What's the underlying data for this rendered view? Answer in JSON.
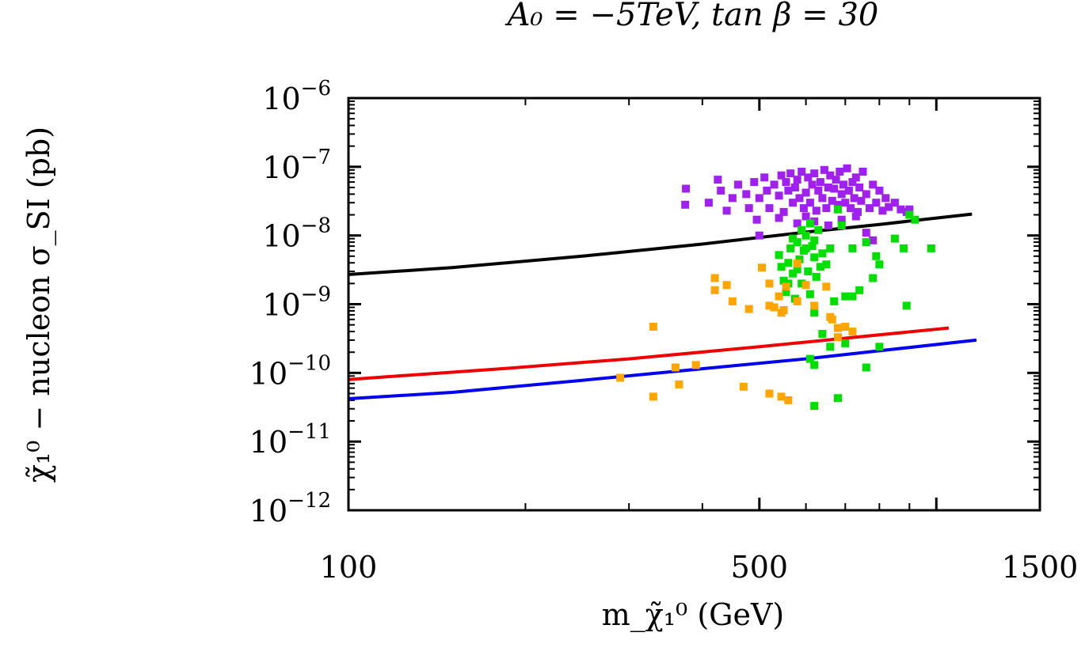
{
  "chart_data": {
    "type": "scatter",
    "title": "A₀ = −5TeV, tan β = 30",
    "xlabel": "m_χ̃₁⁰ (GeV)",
    "ylabel": "χ̃₁⁰ − nucleon σ_SI (pb)",
    "xscale": "log",
    "yscale": "log",
    "xlim": [
      100,
      1500
    ],
    "ylim": [
      1e-12,
      1e-06
    ],
    "x_tick_labels": [
      "100",
      "500",
      "1500"
    ],
    "x_tick_values": [
      100,
      500,
      1500
    ],
    "y_tick_values": [
      1e-12,
      1e-11,
      1e-10,
      1e-09,
      1e-08,
      1e-07,
      1e-06
    ],
    "y_tick_labels": [
      {
        "base": "10",
        "exp": "−12"
      },
      {
        "base": "10",
        "exp": "−11"
      },
      {
        "base": "10",
        "exp": "−10"
      },
      {
        "base": "10",
        "exp": "−9"
      },
      {
        "base": "10",
        "exp": "−8"
      },
      {
        "base": "10",
        "exp": "−7"
      },
      {
        "base": "10",
        "exp": "−6"
      }
    ],
    "grid": false,
    "lines": [
      {
        "color": "#000000",
        "x": [
          100,
          150,
          250,
          400,
          600,
          800,
          1150
        ],
        "y": [
          2.7e-09,
          3.4e-09,
          5e-09,
          7.5e-09,
          1.12e-08,
          1.45e-08,
          2.05e-08
        ]
      },
      {
        "color": "#ee0000",
        "x": [
          100,
          130,
          180,
          300,
          500,
          700,
          1050
        ],
        "y": [
          8e-11,
          9.4e-11,
          1.14e-10,
          1.6e-10,
          2.4e-10,
          3.2e-10,
          4.5e-10
        ]
      },
      {
        "color": "#0000ee",
        "x": [
          100,
          150,
          250,
          400,
          600,
          800,
          1170
        ],
        "y": [
          4.2e-11,
          5.2e-11,
          7.8e-11,
          1.15e-10,
          1.6e-10,
          2.1e-10,
          3e-10
        ]
      }
    ],
    "series": [
      {
        "color": "#a020f0",
        "marker": "square",
        "points": [
          [
            375,
            4.8e-08
          ],
          [
            374,
            2.8e-08
          ],
          [
            410,
            3e-08
          ],
          [
            425,
            6.5e-08
          ],
          [
            430,
            4.5e-08
          ],
          [
            440,
            2.3e-08
          ],
          [
            450,
            3.5e-08
          ],
          [
            460,
            5.5e-08
          ],
          [
            475,
            4e-08
          ],
          [
            480,
            2.5e-08
          ],
          [
            490,
            6e-08
          ],
          [
            495,
            1.7e-08
          ],
          [
            500,
            3.5e-08
          ],
          [
            510,
            7e-08
          ],
          [
            515,
            4.5e-08
          ],
          [
            520,
            2.5e-08
          ],
          [
            530,
            5.5e-08
          ],
          [
            540,
            3.8e-08
          ],
          [
            545,
            7.5e-08
          ],
          [
            550,
            2.2e-08
          ],
          [
            555,
            6e-08
          ],
          [
            560,
            4.5e-08
          ],
          [
            565,
            8e-08
          ],
          [
            570,
            3e-08
          ],
          [
            575,
            5e-08
          ],
          [
            580,
            6.5e-08
          ],
          [
            585,
            3.5e-08
          ],
          [
            590,
            8.5e-08
          ],
          [
            595,
            2.5e-08
          ],
          [
            600,
            4.2e-08
          ],
          [
            605,
            7e-08
          ],
          [
            610,
            3e-08
          ],
          [
            615,
            5.5e-08
          ],
          [
            620,
            8e-08
          ],
          [
            625,
            2.3e-08
          ],
          [
            630,
            4.5e-08
          ],
          [
            635,
            6e-08
          ],
          [
            640,
            3.5e-08
          ],
          [
            645,
            9e-08
          ],
          [
            650,
            2.5e-08
          ],
          [
            655,
            5e-08
          ],
          [
            660,
            7.5e-08
          ],
          [
            665,
            3.2e-08
          ],
          [
            670,
            4.8e-08
          ],
          [
            675,
            6.5e-08
          ],
          [
            680,
            2.8e-08
          ],
          [
            685,
            8.5e-08
          ],
          [
            690,
            4e-08
          ],
          [
            695,
            5.5e-08
          ],
          [
            700,
            3e-08
          ],
          [
            705,
            9.5e-08
          ],
          [
            710,
            4.5e-08
          ],
          [
            715,
            2.5e-08
          ],
          [
            720,
            6e-08
          ],
          [
            725,
            3.5e-08
          ],
          [
            730,
            7e-08
          ],
          [
            735,
            2.2e-08
          ],
          [
            740,
            5e-08
          ],
          [
            745,
            3.2e-08
          ],
          [
            750,
            8.5e-08
          ],
          [
            760,
            4e-08
          ],
          [
            770,
            2.5e-08
          ],
          [
            780,
            5.5e-08
          ],
          [
            790,
            3e-08
          ],
          [
            800,
            4.5e-08
          ],
          [
            810,
            2.3e-08
          ],
          [
            820,
            3.5e-08
          ],
          [
            830,
            2.6e-08
          ],
          [
            850,
            3e-08
          ],
          [
            870,
            2.4e-08
          ],
          [
            890,
            2.2e-08
          ],
          [
            900,
            2.4e-08
          ],
          [
            580,
            1.5e-08
          ],
          [
            600,
            1.9e-08
          ],
          [
            620,
            1.6e-08
          ],
          [
            540,
            1.8e-08
          ],
          [
            500,
            1e-08
          ],
          [
            780,
            8.5e-09
          ],
          [
            760,
            1.1e-08
          ],
          [
            690,
            1.7e-08
          ],
          [
            655,
            1.4e-08
          ],
          [
            730,
            1.9e-08
          ]
        ]
      },
      {
        "color": "#00e000",
        "marker": "square",
        "points": [
          [
            540,
            5.2e-09
          ],
          [
            545,
            3.5e-09
          ],
          [
            550,
            2.2e-09
          ],
          [
            555,
            1.5e-09
          ],
          [
            560,
            4e-09
          ],
          [
            565,
            6.5e-09
          ],
          [
            570,
            2.8e-09
          ],
          [
            575,
            1.2e-09
          ],
          [
            580,
            8e-09
          ],
          [
            585,
            4.5e-09
          ],
          [
            590,
            2e-09
          ],
          [
            595,
            6e-09
          ],
          [
            600,
            1e-08
          ],
          [
            605,
            3e-09
          ],
          [
            610,
            1.4e-09
          ],
          [
            615,
            7e-09
          ],
          [
            620,
            4.8e-09
          ],
          [
            625,
            2.5e-09
          ],
          [
            630,
            1.2e-08
          ],
          [
            635,
            3.5e-09
          ],
          [
            640,
            5.5e-09
          ],
          [
            620,
            8.5e-09
          ],
          [
            600,
            6.5e-09
          ],
          [
            590,
            1.2e-08
          ],
          [
            610,
            1.5e-08
          ],
          [
            570,
            9e-09
          ],
          [
            580,
            3.2e-09
          ],
          [
            560,
            2e-09
          ],
          [
            650,
            3.8e-09
          ],
          [
            660,
            6.5e-09
          ],
          [
            680,
            2.4e-08
          ],
          [
            690,
            1.4e-08
          ],
          [
            720,
            6.5e-09
          ],
          [
            760,
            8e-09
          ],
          [
            790,
            5e-09
          ],
          [
            800,
            3.8e-09
          ],
          [
            850,
            9e-09
          ],
          [
            880,
            6.5e-09
          ],
          [
            900,
            2e-08
          ],
          [
            920,
            1.7e-08
          ],
          [
            980,
            6.5e-09
          ],
          [
            780,
            2.4e-09
          ],
          [
            700,
            1.3e-09
          ],
          [
            620,
            7.5e-10
          ],
          [
            640,
            3.7e-10
          ],
          [
            610,
            1.6e-10
          ],
          [
            620,
            1.3e-10
          ],
          [
            660,
            2.4e-10
          ],
          [
            700,
            2.7e-10
          ],
          [
            760,
            1.2e-10
          ],
          [
            800,
            2.4e-10
          ],
          [
            620,
            3.3e-11
          ],
          [
            680,
            4.3e-11
          ],
          [
            740,
            1.6e-09
          ],
          [
            720,
            1.3e-09
          ],
          [
            670,
            1.1e-09
          ],
          [
            890,
            9.5e-10
          ]
        ]
      },
      {
        "color": "#ffa500",
        "marker": "square",
        "points": [
          [
            420,
            2.4e-09
          ],
          [
            420,
            1.6e-09
          ],
          [
            440,
            1.9e-09
          ],
          [
            450,
            1.1e-09
          ],
          [
            480,
            8.5e-10
          ],
          [
            505,
            3.4e-09
          ],
          [
            520,
            2e-09
          ],
          [
            530,
            9e-10
          ],
          [
            540,
            1.3e-09
          ],
          [
            545,
            7.5e-10
          ],
          [
            550,
            8.2e-10
          ],
          [
            555,
            1.8e-09
          ],
          [
            580,
            3.9e-09
          ],
          [
            600,
            1.9e-09
          ],
          [
            620,
            9.5e-10
          ],
          [
            650,
            1.8e-09
          ],
          [
            660,
            6.5e-10
          ],
          [
            665,
            6e-10
          ],
          [
            680,
            4.5e-10
          ],
          [
            700,
            4.7e-10
          ],
          [
            680,
            3.3e-10
          ],
          [
            720,
            4e-10
          ],
          [
            330,
            4.7e-10
          ],
          [
            330,
            4.5e-11
          ],
          [
            360,
            1.2e-10
          ],
          [
            365,
            6.8e-11
          ],
          [
            390,
            1.3e-10
          ],
          [
            470,
            6.3e-11
          ],
          [
            520,
            5e-11
          ],
          [
            545,
            4.5e-11
          ],
          [
            560,
            4e-11
          ],
          [
            290,
            8.5e-11
          ],
          [
            580,
            1.1e-09
          ],
          [
            520,
            9.5e-10
          ]
        ]
      }
    ]
  }
}
